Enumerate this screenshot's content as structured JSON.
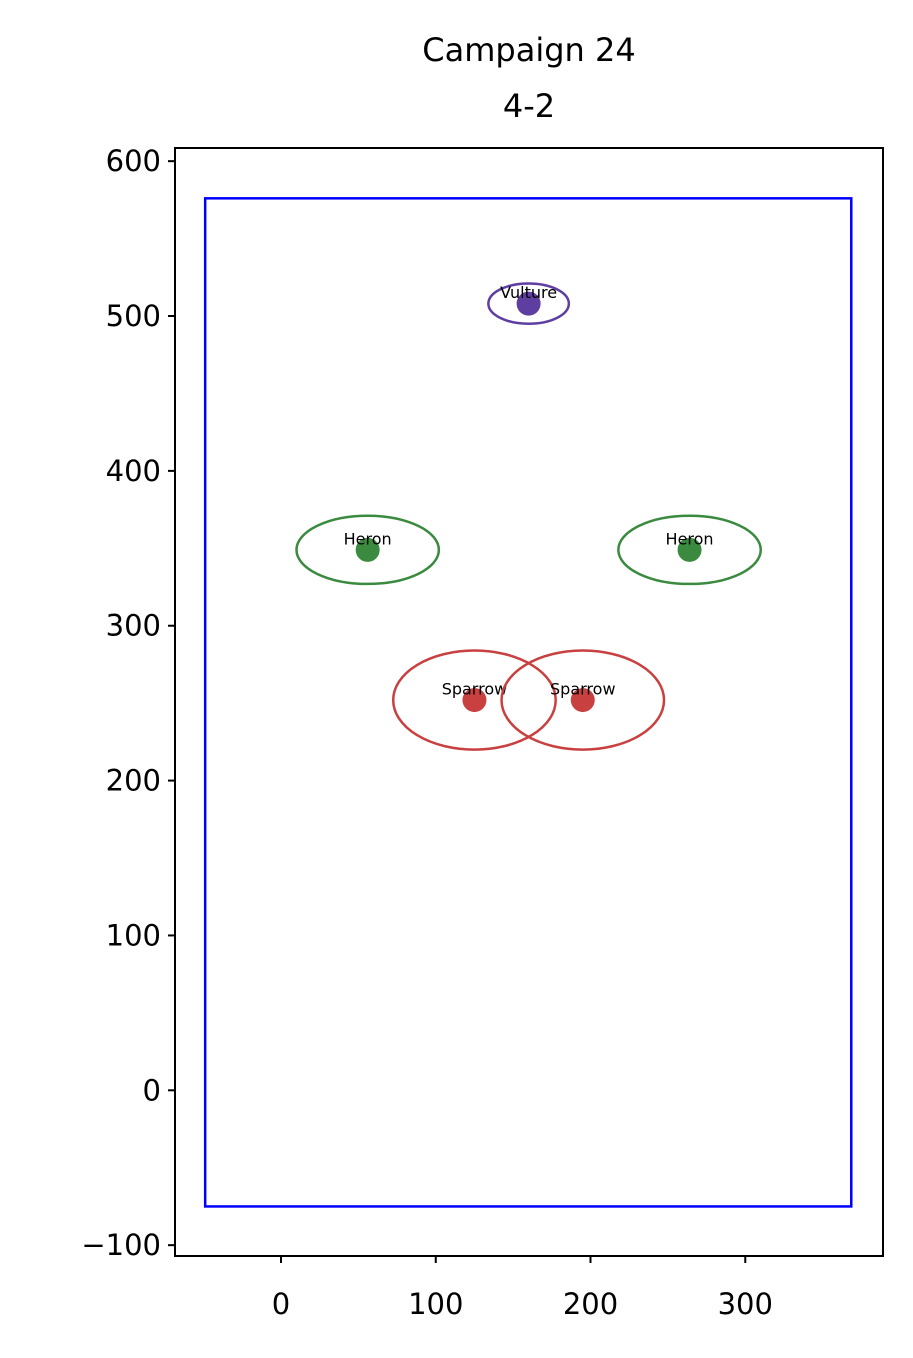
{
  "chart_data": {
    "type": "scatter",
    "title": "Campaign 24",
    "subtitle": "4-2",
    "xlim": [
      -68.5,
      389
    ],
    "ylim": [
      -107,
      608.5
    ],
    "xticks": [
      0,
      100,
      200,
      300
    ],
    "yticks": [
      {
        "value": -100,
        "label": "−100"
      },
      0,
      100,
      200,
      300,
      400,
      500,
      600
    ],
    "grid": false,
    "boundary": {
      "x": [
        -49,
        368.5
      ],
      "y": [
        -75,
        576
      ],
      "color": "#0000ff"
    },
    "points": [
      {
        "label": "Vulture",
        "color": "#5e3ea1",
        "x": 160,
        "y": 508,
        "width": 52,
        "height": 26
      },
      {
        "label": "Heron",
        "color": "#3a8a3f",
        "x": 56,
        "y": 349,
        "width": 92,
        "height": 44
      },
      {
        "label": "Heron",
        "color": "#3a8a3f",
        "x": 264,
        "y": 349,
        "width": 92,
        "height": 44
      },
      {
        "label": "Sparrow",
        "color": "#c94040",
        "x": 125,
        "y": 252,
        "width": 105,
        "height": 64
      },
      {
        "label": "Sparrow",
        "color": "#c94040",
        "x": 195,
        "y": 252,
        "width": 105,
        "height": 64
      }
    ]
  }
}
